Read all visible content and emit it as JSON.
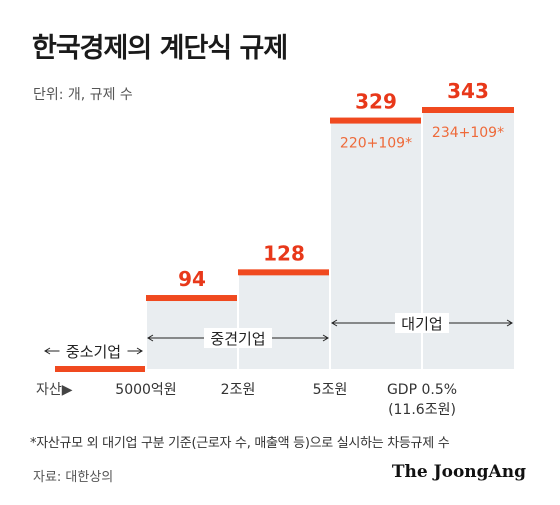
{
  "header": {
    "title": "한국경제의 계단식 규제",
    "unit": "단위: 개, 규제 수"
  },
  "chart_data": {
    "type": "bar",
    "title": "한국경제의 계단식 규제",
    "ylabel": "단위: 개, 규제 수",
    "x_axis_label": "자산▶",
    "x_ticks": [
      "5000억원",
      "2조원",
      "5조원",
      "GDP 0.5%",
      "(11.6조원)"
    ],
    "categories": [
      "중소기업",
      "중견기업",
      "중견기업",
      "대기업",
      "대기업"
    ],
    "values": [
      0,
      94,
      128,
      329,
      343
    ],
    "breakdown_labels": [
      "",
      "",
      "",
      "220+109*",
      "234+109*"
    ],
    "groups": [
      {
        "label": "중소기업"
      },
      {
        "label": "중견기업"
      },
      {
        "label": "대기업"
      }
    ],
    "colors": {
      "step": "#f0491f",
      "fill": "#e9edf0",
      "divider": "#ffffff",
      "breakdown": "#ee6a3a"
    }
  },
  "footer": {
    "note": "*자산규모 외 대기업 구분 기준(근로자 수, 매출액 등)으로 실시하는 차등규제 수",
    "source": "자료: 대한상의",
    "brand": "The JoongAng"
  }
}
